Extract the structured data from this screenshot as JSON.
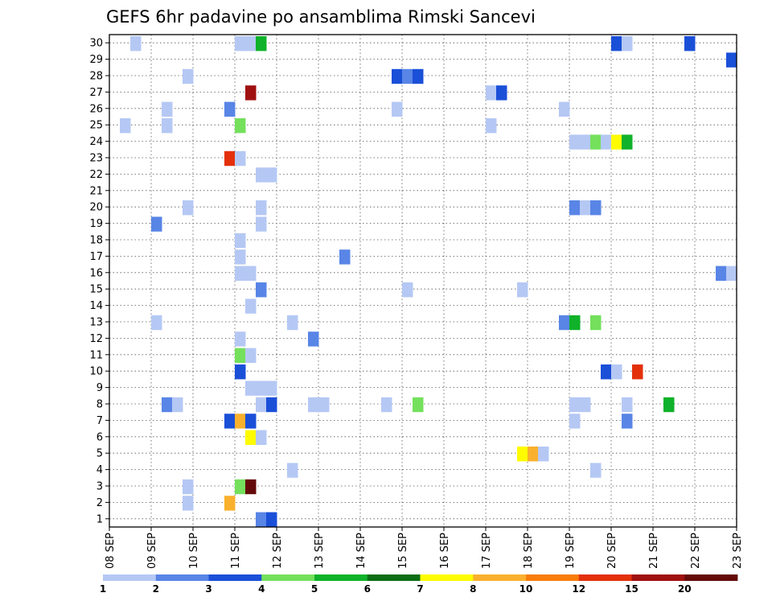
{
  "chart_data": {
    "type": "heatmap",
    "title": "GEFS 6hr padavine po ansamblima Rimski Sancevi",
    "x_ticks": [
      "08 SEP",
      "09 SEP",
      "10 SEP",
      "11 SEP",
      "12 SEP",
      "13 SEP",
      "14 SEP",
      "15 SEP",
      "16 SEP",
      "17 SEP",
      "18 SEP",
      "19 SEP",
      "20 SEP",
      "21 SEP",
      "22 SEP",
      "23 SEP"
    ],
    "y_ticks": [
      "1",
      "2",
      "3",
      "4",
      "5",
      "6",
      "7",
      "8",
      "9",
      "10",
      "11",
      "12",
      "13",
      "14",
      "15",
      "16",
      "17",
      "18",
      "19",
      "20",
      "21",
      "22",
      "23",
      "24",
      "25",
      "26",
      "27",
      "28",
      "29",
      "30"
    ],
    "xlim": [
      0,
      15
    ],
    "ylim": [
      0,
      30
    ],
    "time_step_days": 0.25,
    "grid": true,
    "legend_placement": "bottom",
    "colorbar": {
      "labels": [
        "1",
        "2",
        "3",
        "4",
        "5",
        "6",
        "7",
        "8",
        "10",
        "12",
        "15",
        "20"
      ],
      "colors": [
        "#b5c8f4",
        "#5885e6",
        "#1a4fd8",
        "#74e05c",
        "#0fb22a",
        "#0b6e14",
        "#fffc00",
        "#f9b02d",
        "#f87d0b",
        "#e3300b",
        "#a01010",
        "#650a0a"
      ]
    },
    "cells": [
      {
        "member": 30,
        "day": 0.5,
        "bin": 0
      },
      {
        "member": 30,
        "day": 3.0,
        "bin": 0
      },
      {
        "member": 30,
        "day": 3.25,
        "bin": 0
      },
      {
        "member": 30,
        "day": 3.5,
        "bin": 4
      },
      {
        "member": 30,
        "day": 12.0,
        "bin": 2
      },
      {
        "member": 30,
        "day": 12.25,
        "bin": 0
      },
      {
        "member": 30,
        "day": 13.75,
        "bin": 2
      },
      {
        "member": 29,
        "day": 14.75,
        "bin": 2
      },
      {
        "member": 28,
        "day": 1.75,
        "bin": 0
      },
      {
        "member": 28,
        "day": 6.75,
        "bin": 2
      },
      {
        "member": 28,
        "day": 7.0,
        "bin": 1
      },
      {
        "member": 28,
        "day": 7.25,
        "bin": 2
      },
      {
        "member": 27,
        "day": 3.25,
        "bin": 10
      },
      {
        "member": 27,
        "day": 9.0,
        "bin": 0
      },
      {
        "member": 27,
        "day": 9.25,
        "bin": 2
      },
      {
        "member": 26,
        "day": 1.25,
        "bin": 0
      },
      {
        "member": 26,
        "day": 2.75,
        "bin": 1
      },
      {
        "member": 26,
        "day": 6.75,
        "bin": 0
      },
      {
        "member": 26,
        "day": 10.75,
        "bin": 0
      },
      {
        "member": 25,
        "day": 0.25,
        "bin": 0
      },
      {
        "member": 25,
        "day": 1.25,
        "bin": 0
      },
      {
        "member": 25,
        "day": 3.0,
        "bin": 3
      },
      {
        "member": 25,
        "day": 9.0,
        "bin": 0
      },
      {
        "member": 24,
        "day": 11.0,
        "bin": 0
      },
      {
        "member": 24,
        "day": 11.25,
        "bin": 0
      },
      {
        "member": 24,
        "day": 11.5,
        "bin": 3
      },
      {
        "member": 24,
        "day": 11.75,
        "bin": 0
      },
      {
        "member": 24,
        "day": 12.0,
        "bin": 6
      },
      {
        "member": 24,
        "day": 12.25,
        "bin": 4
      },
      {
        "member": 23,
        "day": 2.75,
        "bin": 9
      },
      {
        "member": 23,
        "day": 3.0,
        "bin": 0
      },
      {
        "member": 22,
        "day": 3.5,
        "bin": 0
      },
      {
        "member": 22,
        "day": 3.75,
        "bin": 0
      },
      {
        "member": 20,
        "day": 1.75,
        "bin": 0
      },
      {
        "member": 20,
        "day": 3.5,
        "bin": 0
      },
      {
        "member": 20,
        "day": 11.0,
        "bin": 1
      },
      {
        "member": 20,
        "day": 11.25,
        "bin": 0
      },
      {
        "member": 20,
        "day": 11.5,
        "bin": 1
      },
      {
        "member": 19,
        "day": 1.0,
        "bin": 1
      },
      {
        "member": 19,
        "day": 3.5,
        "bin": 0
      },
      {
        "member": 18,
        "day": 3.0,
        "bin": 0
      },
      {
        "member": 17,
        "day": 3.0,
        "bin": 0
      },
      {
        "member": 17,
        "day": 5.5,
        "bin": 1
      },
      {
        "member": 16,
        "day": 3.0,
        "bin": 0
      },
      {
        "member": 16,
        "day": 3.25,
        "bin": 0
      },
      {
        "member": 16,
        "day": 14.5,
        "bin": 1
      },
      {
        "member": 16,
        "day": 14.75,
        "bin": 0
      },
      {
        "member": 15,
        "day": 3.5,
        "bin": 1
      },
      {
        "member": 15,
        "day": 7.0,
        "bin": 0
      },
      {
        "member": 15,
        "day": 9.75,
        "bin": 0
      },
      {
        "member": 14,
        "day": 3.25,
        "bin": 0
      },
      {
        "member": 13,
        "day": 1.0,
        "bin": 0
      },
      {
        "member": 13,
        "day": 4.25,
        "bin": 0
      },
      {
        "member": 13,
        "day": 10.75,
        "bin": 1
      },
      {
        "member": 13,
        "day": 11.0,
        "bin": 4
      },
      {
        "member": 13,
        "day": 11.5,
        "bin": 3
      },
      {
        "member": 12,
        "day": 3.0,
        "bin": 0
      },
      {
        "member": 12,
        "day": 4.75,
        "bin": 1
      },
      {
        "member": 11,
        "day": 3.0,
        "bin": 3
      },
      {
        "member": 11,
        "day": 3.25,
        "bin": 0
      },
      {
        "member": 10,
        "day": 3.0,
        "bin": 2
      },
      {
        "member": 10,
        "day": 11.75,
        "bin": 2
      },
      {
        "member": 10,
        "day": 12.0,
        "bin": 0
      },
      {
        "member": 10,
        "day": 12.5,
        "bin": 9
      },
      {
        "member": 9,
        "day": 3.25,
        "bin": 0
      },
      {
        "member": 9,
        "day": 3.5,
        "bin": 0
      },
      {
        "member": 9,
        "day": 3.75,
        "bin": 0
      },
      {
        "member": 8,
        "day": 1.25,
        "bin": 1
      },
      {
        "member": 8,
        "day": 1.5,
        "bin": 0
      },
      {
        "member": 8,
        "day": 3.5,
        "bin": 0
      },
      {
        "member": 8,
        "day": 3.75,
        "bin": 2
      },
      {
        "member": 8,
        "day": 4.75,
        "bin": 0
      },
      {
        "member": 8,
        "day": 5.0,
        "bin": 0
      },
      {
        "member": 8,
        "day": 6.5,
        "bin": 0
      },
      {
        "member": 8,
        "day": 7.25,
        "bin": 3
      },
      {
        "member": 8,
        "day": 11.0,
        "bin": 0
      },
      {
        "member": 8,
        "day": 11.25,
        "bin": 0
      },
      {
        "member": 8,
        "day": 12.25,
        "bin": 0
      },
      {
        "member": 8,
        "day": 13.25,
        "bin": 4
      },
      {
        "member": 7,
        "day": 2.75,
        "bin": 2
      },
      {
        "member": 7,
        "day": 3.0,
        "bin": 7
      },
      {
        "member": 7,
        "day": 3.25,
        "bin": 2
      },
      {
        "member": 7,
        "day": 11.0,
        "bin": 0
      },
      {
        "member": 7,
        "day": 12.25,
        "bin": 1
      },
      {
        "member": 6,
        "day": 3.25,
        "bin": 6
      },
      {
        "member": 6,
        "day": 3.5,
        "bin": 0
      },
      {
        "member": 5,
        "day": 9.75,
        "bin": 6
      },
      {
        "member": 5,
        "day": 10.0,
        "bin": 7
      },
      {
        "member": 5,
        "day": 10.25,
        "bin": 0
      },
      {
        "member": 4,
        "day": 4.25,
        "bin": 0
      },
      {
        "member": 4,
        "day": 11.5,
        "bin": 0
      },
      {
        "member": 3,
        "day": 1.75,
        "bin": 0
      },
      {
        "member": 3,
        "day": 3.0,
        "bin": 3
      },
      {
        "member": 3,
        "day": 3.25,
        "bin": 11
      },
      {
        "member": 2,
        "day": 1.75,
        "bin": 0
      },
      {
        "member": 2,
        "day": 2.75,
        "bin": 7
      },
      {
        "member": 1,
        "day": 3.5,
        "bin": 1
      },
      {
        "member": 1,
        "day": 3.75,
        "bin": 2
      }
    ]
  }
}
